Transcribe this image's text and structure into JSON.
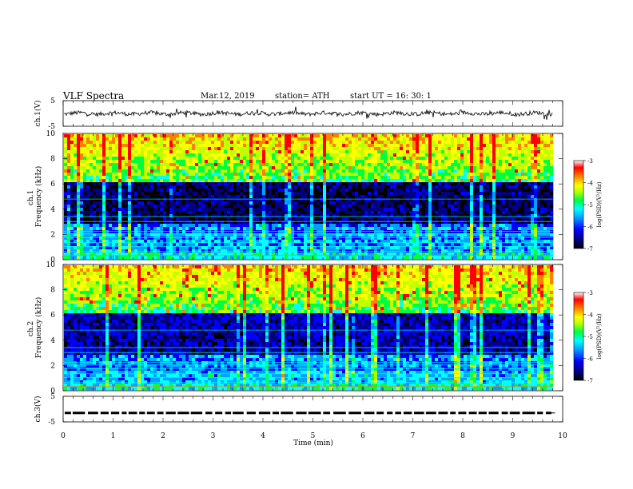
{
  "header": {
    "title": "VLF  Spectra",
    "date": "Mar.12, 2019",
    "station": "station= ATH",
    "start": "start  UT  =   16: 30: 1"
  },
  "chart_data": [
    {
      "type": "line",
      "name": "ch1-voltage",
      "ylabel": "ch.1(V)",
      "yticks": [
        "5",
        "-5"
      ],
      "ylim": [
        -5,
        5
      ],
      "xlim": [
        0,
        10
      ],
      "signal_mean": 0.0,
      "signal_amplitude": 0.8,
      "data_end_min": 9.8,
      "color": "#000000"
    },
    {
      "type": "heatmap",
      "name": "ch1-spectrogram",
      "ylabel": "ch.1\nFrequency  (kHz)",
      "yticks": [
        "0",
        "2",
        "4",
        "6",
        "8",
        "10"
      ],
      "ylim": [
        0,
        10
      ],
      "xlim": [
        0,
        10
      ],
      "data_end_min": 9.8,
      "colorbar": {
        "label": "log(PSD)(V²/Hz)",
        "ticks": [
          "-3",
          "-4",
          "-5",
          "-6",
          "-7"
        ],
        "range": [
          -7,
          -3
        ]
      }
    },
    {
      "type": "heatmap",
      "name": "ch2-spectrogram",
      "ylabel": "ch.2\nFrequency  (kHz)",
      "yticks": [
        "0",
        "2",
        "4",
        "6",
        "8",
        "10"
      ],
      "ylim": [
        0,
        10
      ],
      "xlim": [
        0,
        10
      ],
      "data_end_min": 9.8,
      "colorbar": {
        "label": "log(PSD)(V²/Hz)",
        "ticks": [
          "-3",
          "-4",
          "-5",
          "-6",
          "-7"
        ],
        "range": [
          -7,
          -3
        ]
      }
    },
    {
      "type": "line",
      "name": "ch3-voltage",
      "ylabel": "ch.3(V)",
      "yticks": [
        "5",
        "-5"
      ],
      "ylim": [
        -5,
        5
      ],
      "xlim": [
        0,
        10
      ],
      "signal_mean": -1.5,
      "signal_style": "dashed",
      "data_end_min": 9.8,
      "color": "#000000"
    }
  ],
  "xaxis": {
    "label": "Time  (min)",
    "ticks": [
      "0",
      "1",
      "2",
      "3",
      "4",
      "5",
      "6",
      "7",
      "8",
      "9",
      "10"
    ],
    "range": [
      0,
      10
    ]
  },
  "colors": {
    "background": "#ffffff",
    "axis": "#000000",
    "colormap": [
      "#000000",
      "#000080",
      "#0000ff",
      "#00a0ff",
      "#00ffff",
      "#00ff40",
      "#c0ff00",
      "#ffff00",
      "#ff8000",
      "#ff0000",
      "#ffffff"
    ]
  }
}
